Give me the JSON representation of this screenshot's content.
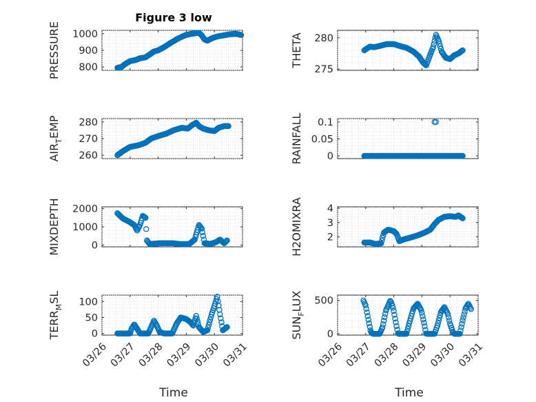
{
  "figure": {
    "title": "Figure 3 low",
    "xlabel": "Time",
    "xticklabels": [
      "03/26",
      "03/27",
      "03/28",
      "03/29",
      "03/30",
      "03/31"
    ],
    "marker_color": "#0072bd"
  },
  "chart_data": [
    {
      "type": "scatter",
      "id": "pressure",
      "ylabel_parts": [
        "PRESSURE"
      ],
      "xlim": [
        0,
        5
      ],
      "ylim": [
        780,
        1020
      ],
      "yticks": [
        800,
        900,
        1000
      ],
      "yticklabels": [
        "800",
        "900",
        "1000"
      ],
      "anchors": [
        [
          0.55,
          795
        ],
        [
          0.7,
          800
        ],
        [
          0.8,
          815
        ],
        [
          1.0,
          835
        ],
        [
          1.2,
          842
        ],
        [
          1.35,
          852
        ],
        [
          1.55,
          858
        ],
        [
          1.7,
          875
        ],
        [
          1.85,
          893
        ],
        [
          2.0,
          900
        ],
        [
          2.2,
          918
        ],
        [
          2.45,
          945
        ],
        [
          2.7,
          970
        ],
        [
          2.95,
          990
        ],
        [
          3.2,
          1000
        ],
        [
          3.45,
          1005
        ],
        [
          3.55,
          990
        ],
        [
          3.65,
          965
        ],
        [
          3.75,
          958
        ],
        [
          3.95,
          975
        ],
        [
          4.15,
          985
        ],
        [
          4.35,
          990
        ],
        [
          4.5,
          995
        ],
        [
          4.75,
          1000
        ],
        [
          4.95,
          992
        ]
      ]
    },
    {
      "type": "scatter",
      "id": "theta",
      "ylabel_parts": [
        "THETA"
      ],
      "xlim": [
        0,
        5
      ],
      "ylim": [
        274.8,
        281.2
      ],
      "yticks": [
        275,
        280
      ],
      "yticklabels": [
        "275",
        "280"
      ],
      "anchors": [
        [
          0.95,
          278.0
        ],
        [
          1.05,
          278.3
        ],
        [
          1.15,
          278.6
        ],
        [
          1.3,
          278.5
        ],
        [
          1.5,
          278.7
        ],
        [
          1.75,
          279.0
        ],
        [
          2.0,
          279.0
        ],
        [
          2.2,
          278.7
        ],
        [
          2.45,
          278.4
        ],
        [
          2.7,
          277.8
        ],
        [
          2.9,
          277.0
        ],
        [
          3.05,
          276.0
        ],
        [
          3.15,
          275.6
        ],
        [
          3.25,
          276.8
        ],
        [
          3.4,
          278.5
        ],
        [
          3.5,
          280.5
        ],
        [
          3.6,
          279.5
        ],
        [
          3.7,
          277.8
        ],
        [
          3.85,
          276.8
        ],
        [
          4.0,
          276.6
        ],
        [
          4.15,
          277.2
        ],
        [
          4.3,
          277.5
        ],
        [
          4.45,
          278.0
        ]
      ]
    },
    {
      "type": "scatter",
      "id": "air_temp",
      "ylabel_parts": [
        "AIR",
        "T",
        "EMP"
      ],
      "xlim": [
        0,
        5
      ],
      "ylim": [
        258,
        282
      ],
      "yticks": [
        260,
        270,
        280
      ],
      "yticklabels": [
        "260",
        "270",
        "280"
      ],
      "anchors": [
        [
          0.55,
          260.0
        ],
        [
          0.75,
          262.5
        ],
        [
          1.0,
          265.0
        ],
        [
          1.3,
          266.0
        ],
        [
          1.55,
          267.5
        ],
        [
          1.75,
          270.0
        ],
        [
          2.0,
          271.5
        ],
        [
          2.3,
          273.0
        ],
        [
          2.55,
          275.0
        ],
        [
          2.85,
          276.5
        ],
        [
          3.05,
          276.0
        ],
        [
          3.2,
          278.0
        ],
        [
          3.35,
          279.5
        ],
        [
          3.45,
          277.5
        ],
        [
          3.6,
          276.0
        ],
        [
          3.8,
          275.0
        ],
        [
          4.0,
          274.5
        ],
        [
          4.15,
          276.5
        ],
        [
          4.35,
          277.5
        ],
        [
          4.5,
          277.5
        ]
      ]
    },
    {
      "type": "scatter",
      "id": "rainfall",
      "ylabel_parts": [
        "RAINFALL"
      ],
      "xlim": [
        0,
        5
      ],
      "ylim": [
        -0.008,
        0.11
      ],
      "yticks": [
        0,
        0.05,
        0.1
      ],
      "yticklabels": [
        "0",
        "0.05",
        "0.1"
      ],
      "anchors": [
        [
          0.95,
          0
        ],
        [
          4.45,
          0
        ]
      ],
      "extra_points": [
        [
          3.45,
          0.1
        ],
        [
          3.5,
          0.1
        ]
      ]
    },
    {
      "type": "scatter",
      "id": "mixdepth",
      "ylabel_parts": [
        "MIXDEPTH"
      ],
      "xlim": [
        0,
        5
      ],
      "ylim": [
        -100,
        2100
      ],
      "yticks": [
        0,
        1000,
        2000
      ],
      "yticklabels": [
        "0",
        "1000",
        "2000"
      ],
      "anchors": [
        [
          0.55,
          1750
        ],
        [
          0.75,
          1450
        ],
        [
          0.95,
          1300
        ],
        [
          1.15,
          1100
        ],
        [
          1.25,
          800
        ],
        [
          1.35,
          1100
        ],
        [
          1.45,
          1600
        ],
        [
          1.55,
          1500
        ],
        [
          1.6,
          250
        ],
        [
          1.7,
          50
        ],
        [
          1.9,
          80
        ],
        [
          2.1,
          100
        ],
        [
          2.5,
          100
        ],
        [
          2.8,
          50
        ],
        [
          3.1,
          50
        ],
        [
          3.3,
          300
        ],
        [
          3.45,
          1100
        ],
        [
          3.55,
          900
        ],
        [
          3.65,
          100
        ],
        [
          3.85,
          60
        ],
        [
          4.05,
          150
        ],
        [
          4.2,
          300
        ],
        [
          4.35,
          100
        ],
        [
          4.45,
          250
        ]
      ]
    },
    {
      "type": "scatter",
      "id": "h2omixra",
      "ylabel_parts": [
        "H2OMIXRA"
      ],
      "xlim": [
        0,
        5
      ],
      "ylim": [
        1.3,
        4.1
      ],
      "yticks": [
        2,
        3,
        4
      ],
      "yticklabels": [
        "2",
        "3",
        "4"
      ],
      "anchors": [
        [
          0.95,
          1.6
        ],
        [
          1.15,
          1.6
        ],
        [
          1.35,
          1.5
        ],
        [
          1.55,
          1.55
        ],
        [
          1.65,
          2.3
        ],
        [
          1.8,
          2.5
        ],
        [
          2.0,
          2.4
        ],
        [
          2.1,
          2.2
        ],
        [
          2.2,
          1.7
        ],
        [
          2.4,
          1.85
        ],
        [
          2.6,
          1.95
        ],
        [
          2.85,
          2.1
        ],
        [
          3.1,
          2.3
        ],
        [
          3.3,
          2.5
        ],
        [
          3.45,
          2.9
        ],
        [
          3.6,
          3.2
        ],
        [
          3.8,
          3.4
        ],
        [
          4.0,
          3.45
        ],
        [
          4.2,
          3.4
        ],
        [
          4.3,
          3.5
        ],
        [
          4.45,
          3.3
        ]
      ]
    },
    {
      "type": "scatter",
      "id": "terr_msl",
      "ylabel_parts": [
        "TERR",
        "M",
        "SL"
      ],
      "xlim": [
        0,
        5
      ],
      "ylim": [
        -5,
        120
      ],
      "yticks": [
        0,
        50,
        100
      ],
      "yticklabels": [
        "0",
        "50",
        "100"
      ],
      "anchors": [
        [
          0.55,
          0
        ],
        [
          1.0,
          0
        ],
        [
          1.05,
          15
        ],
        [
          1.15,
          28
        ],
        [
          1.25,
          15
        ],
        [
          1.35,
          0
        ],
        [
          1.65,
          0
        ],
        [
          1.75,
          20
        ],
        [
          1.85,
          40
        ],
        [
          1.95,
          25
        ],
        [
          2.05,
          5
        ],
        [
          2.2,
          0
        ],
        [
          2.5,
          0
        ],
        [
          2.65,
          30
        ],
        [
          2.8,
          50
        ],
        [
          3.0,
          45
        ],
        [
          3.15,
          35
        ],
        [
          3.25,
          25
        ],
        [
          3.35,
          55
        ],
        [
          3.45,
          20
        ],
        [
          3.6,
          5
        ],
        [
          3.75,
          10
        ],
        [
          3.9,
          60
        ],
        [
          4.0,
          85
        ],
        [
          4.1,
          115
        ],
        [
          4.2,
          60
        ],
        [
          4.3,
          10
        ],
        [
          4.45,
          20
        ]
      ]
    },
    {
      "type": "scatter",
      "id": "sun_flux",
      "ylabel_parts": [
        "SUN",
        "F",
        "LUX"
      ],
      "xlim": [
        0,
        5
      ],
      "ylim": [
        -20,
        580
      ],
      "yticks": [
        0,
        500
      ],
      "yticklabels": [
        "0",
        "500"
      ],
      "anchors": [
        [
          0.92,
          500
        ],
        [
          1.0,
          420
        ],
        [
          1.1,
          200
        ],
        [
          1.18,
          30
        ],
        [
          1.25,
          0
        ],
        [
          1.5,
          0
        ],
        [
          1.6,
          100
        ],
        [
          1.72,
          350
        ],
        [
          1.88,
          500
        ],
        [
          1.98,
          380
        ],
        [
          2.08,
          150
        ],
        [
          2.15,
          0
        ],
        [
          2.45,
          0
        ],
        [
          2.55,
          160
        ],
        [
          2.7,
          380
        ],
        [
          2.85,
          450
        ],
        [
          2.98,
          350
        ],
        [
          3.08,
          150
        ],
        [
          3.15,
          0
        ],
        [
          3.45,
          0
        ],
        [
          3.55,
          120
        ],
        [
          3.68,
          330
        ],
        [
          3.8,
          400
        ],
        [
          3.92,
          300
        ],
        [
          4.0,
          150
        ],
        [
          4.1,
          30
        ],
        [
          4.15,
          0
        ],
        [
          4.35,
          0
        ],
        [
          4.45,
          200
        ],
        [
          4.55,
          380
        ],
        [
          4.65,
          450
        ],
        [
          4.75,
          370
        ]
      ]
    }
  ]
}
